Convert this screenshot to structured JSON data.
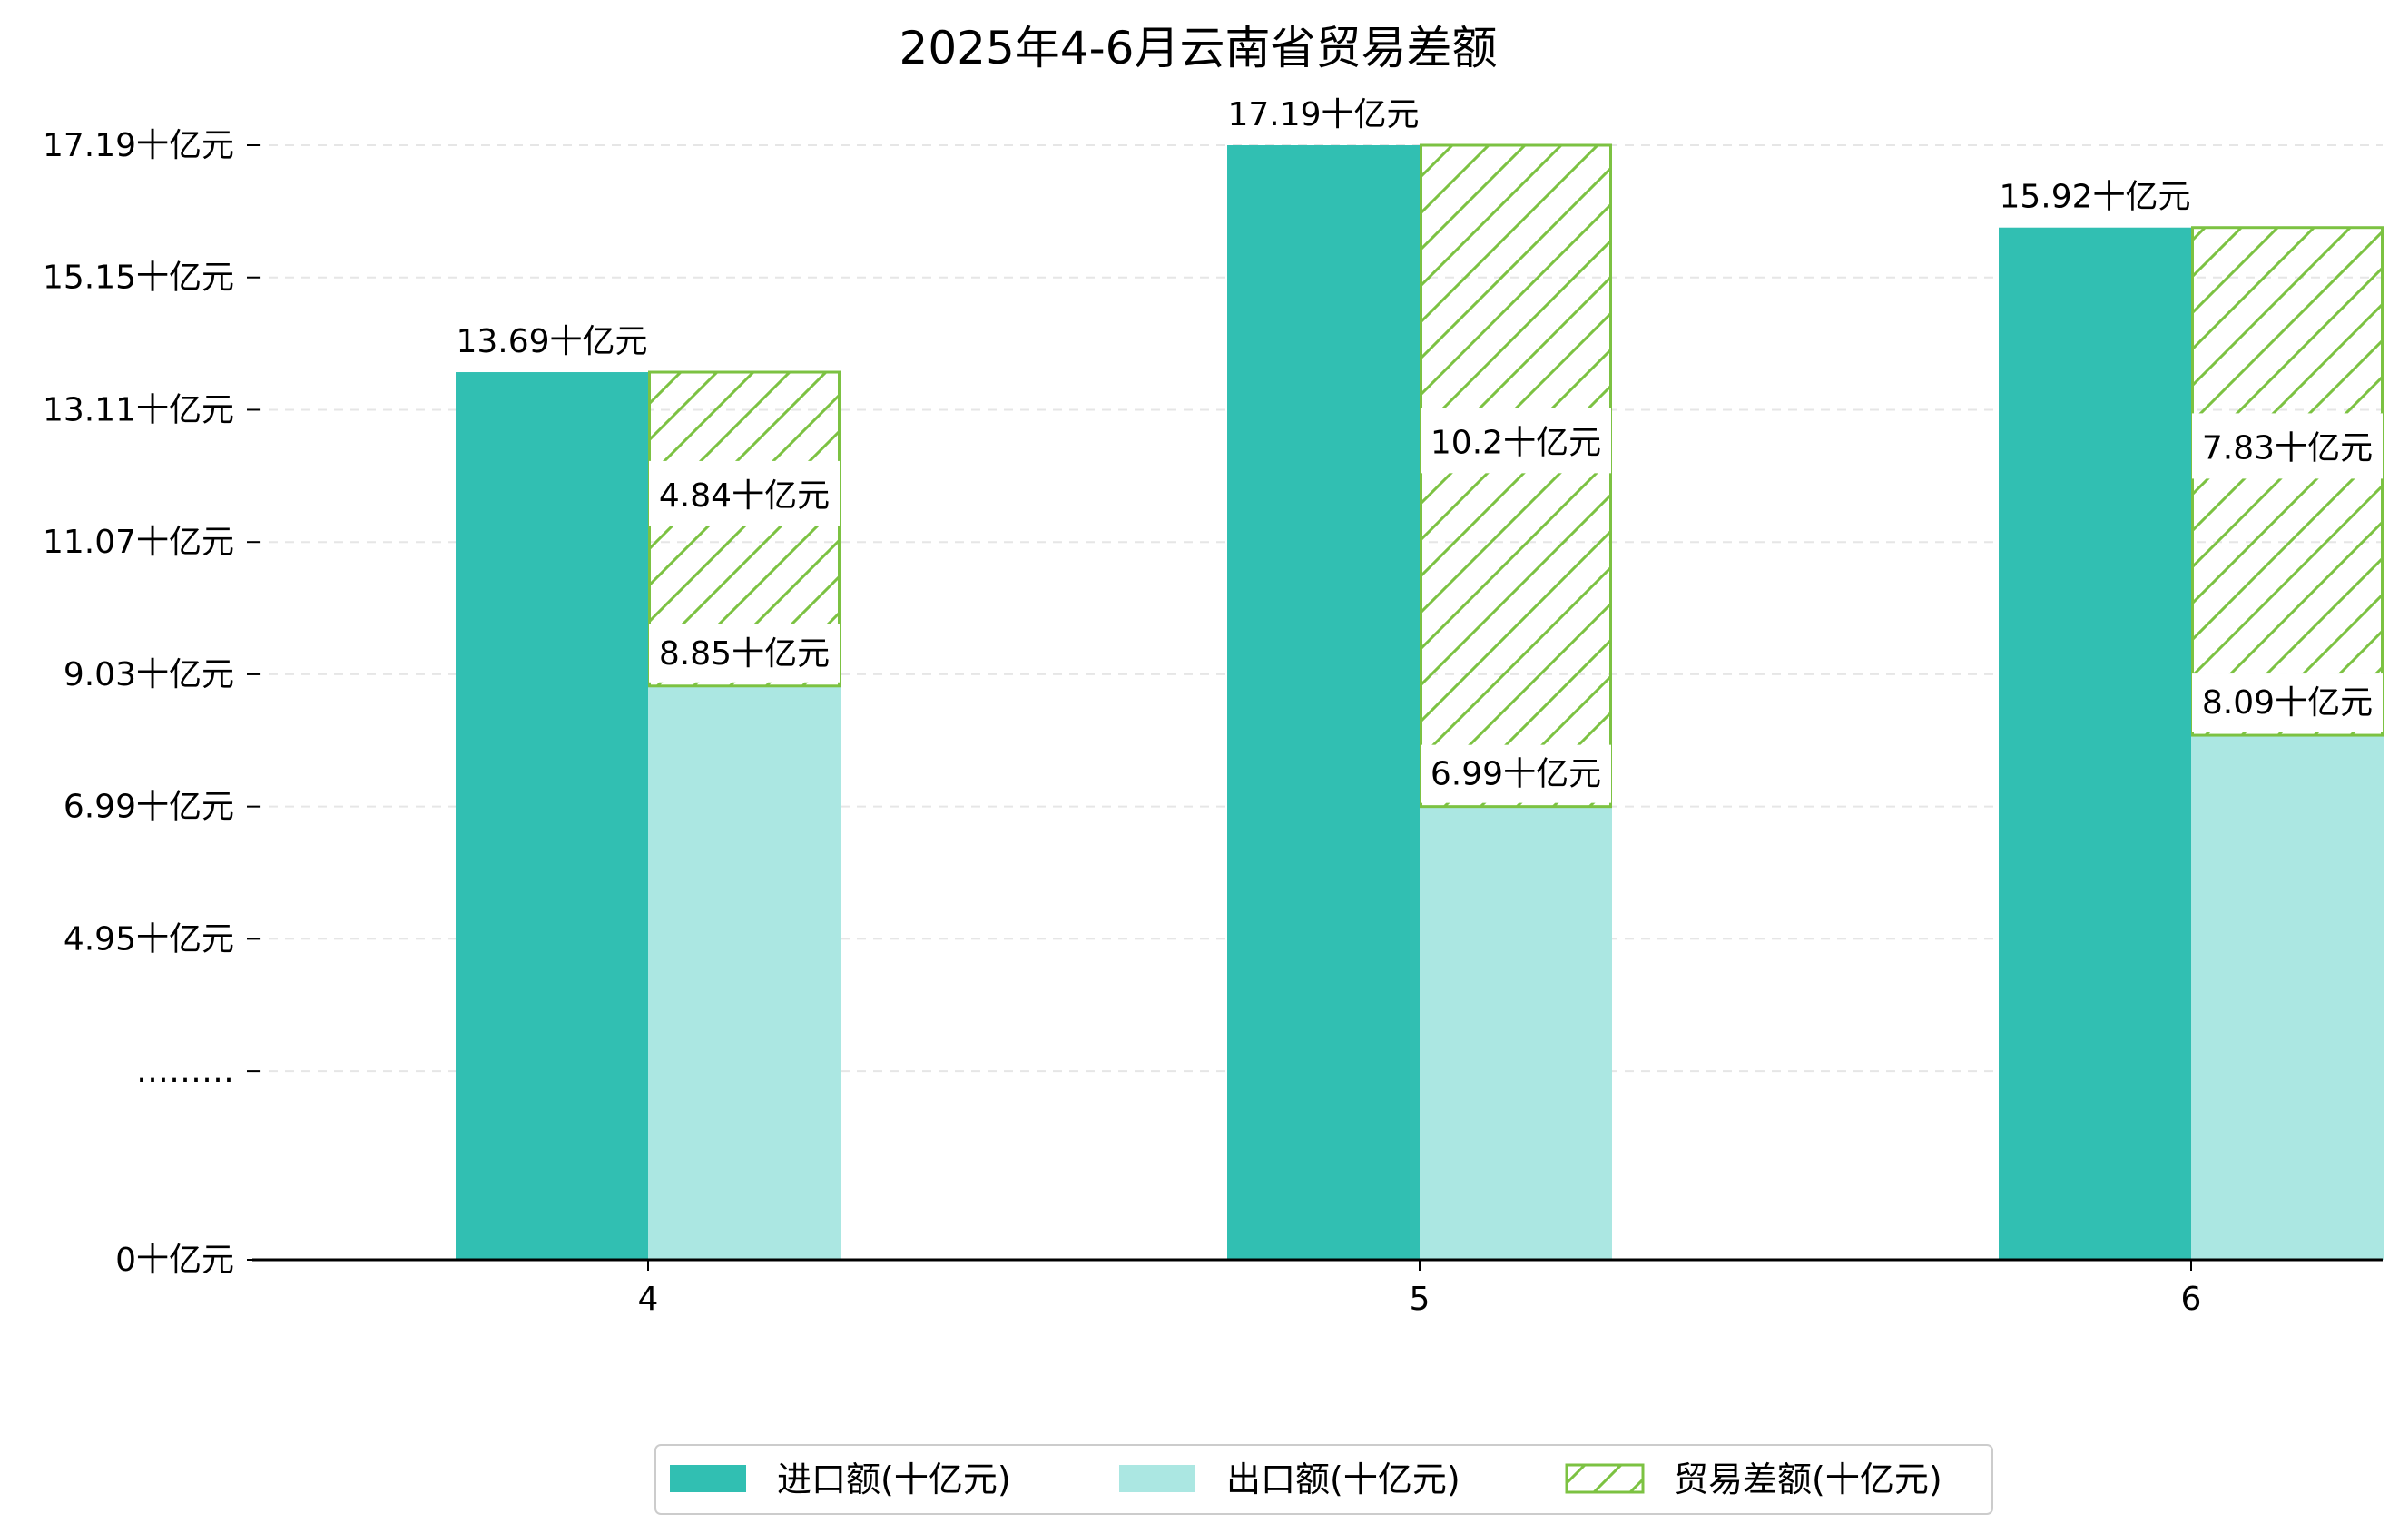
{
  "chart_data": {
    "type": "bar",
    "title": "2025年4-6月云南省贸易差额",
    "categories": [
      "4",
      "5",
      "6"
    ],
    "unit_suffix": "十亿元",
    "series": [
      {
        "name": "进口额(十亿元)",
        "values": [
          13.69,
          17.19,
          15.92
        ],
        "color": "#31bfb2",
        "style": "solid"
      },
      {
        "name": "出口额(十亿元)",
        "values": [
          8.85,
          6.99,
          8.09
        ],
        "color": "#abe7e2",
        "style": "solid"
      },
      {
        "name": "贸易差额(十亿元)",
        "values": [
          4.84,
          10.2,
          7.83
        ],
        "color": "#7cc242",
        "style": "hatch",
        "stacked_on": "出口额(十亿元)"
      }
    ],
    "value_labels": {
      "import": [
        "13.69十亿元",
        "17.19十亿元",
        "15.92十亿元"
      ],
      "export": [
        "8.85十亿元",
        "6.99十亿元",
        "8.09十亿元"
      ],
      "diff": [
        "4.84十亿元",
        "10.2十亿元",
        "7.83十亿元"
      ]
    },
    "y_ticks": [
      {
        "value": 0,
        "label": "0十亿元"
      },
      {
        "value": 2.91,
        "label": "………"
      },
      {
        "value": 4.95,
        "label": "4.95十亿元"
      },
      {
        "value": 6.99,
        "label": "6.99十亿元"
      },
      {
        "value": 9.03,
        "label": "9.03十亿元"
      },
      {
        "value": 11.07,
        "label": "11.07十亿元"
      },
      {
        "value": 13.11,
        "label": "13.11十亿元"
      },
      {
        "value": 15.15,
        "label": "15.15十亿元"
      },
      {
        "value": 17.19,
        "label": "17.19十亿元"
      }
    ],
    "ylim": [
      0,
      17.19
    ],
    "grid": "horizontal-dashed",
    "legend_position": "bottom-center"
  }
}
